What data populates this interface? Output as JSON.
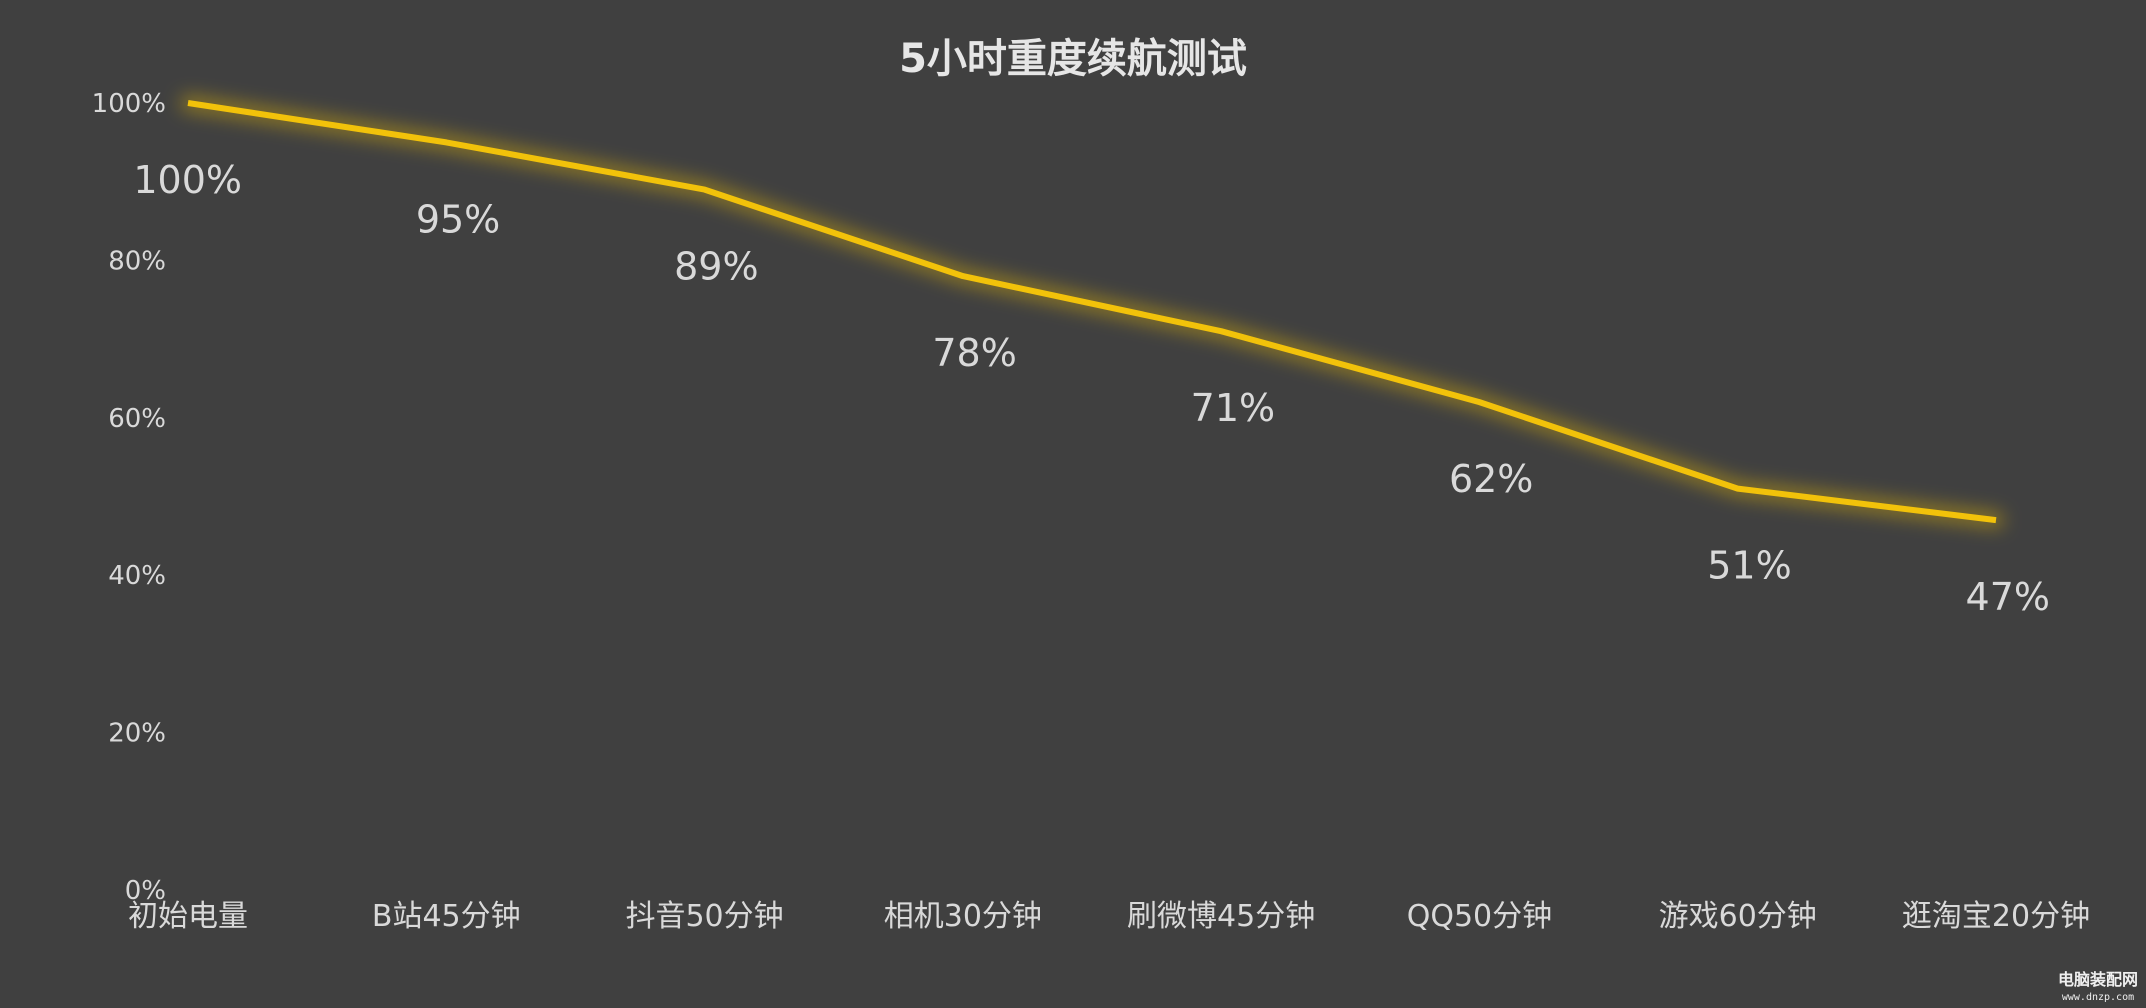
{
  "chart_data": {
    "type": "line",
    "title": "5小时重度续航测试",
    "categories": [
      "初始电量",
      "B站45分钟",
      "抖音50分钟",
      "相机30分钟",
      "刷微博45分钟",
      "QQ50分钟",
      "游戏60分钟",
      "逛淘宝20分钟"
    ],
    "series": [
      {
        "values": [
          100,
          95,
          89,
          78,
          71,
          62,
          51,
          47
        ],
        "data_labels": [
          "100%",
          "95%",
          "89%",
          "78%",
          "71%",
          "62%",
          "51%",
          "47%"
        ],
        "color": "#f2c20a"
      }
    ],
    "y_ticks": [
      "0%",
      "20%",
      "40%",
      "60%",
      "80%",
      "100%"
    ],
    "ylim": [
      0,
      100
    ],
    "grid": false,
    "legend": "none",
    "line_glow": true
  },
  "colors": {
    "background": "#404040",
    "line": "#f2c20a",
    "text": "#d9d9d9"
  },
  "watermark": {
    "main": "电脑装配网",
    "sub": "www.dnzp.com"
  }
}
